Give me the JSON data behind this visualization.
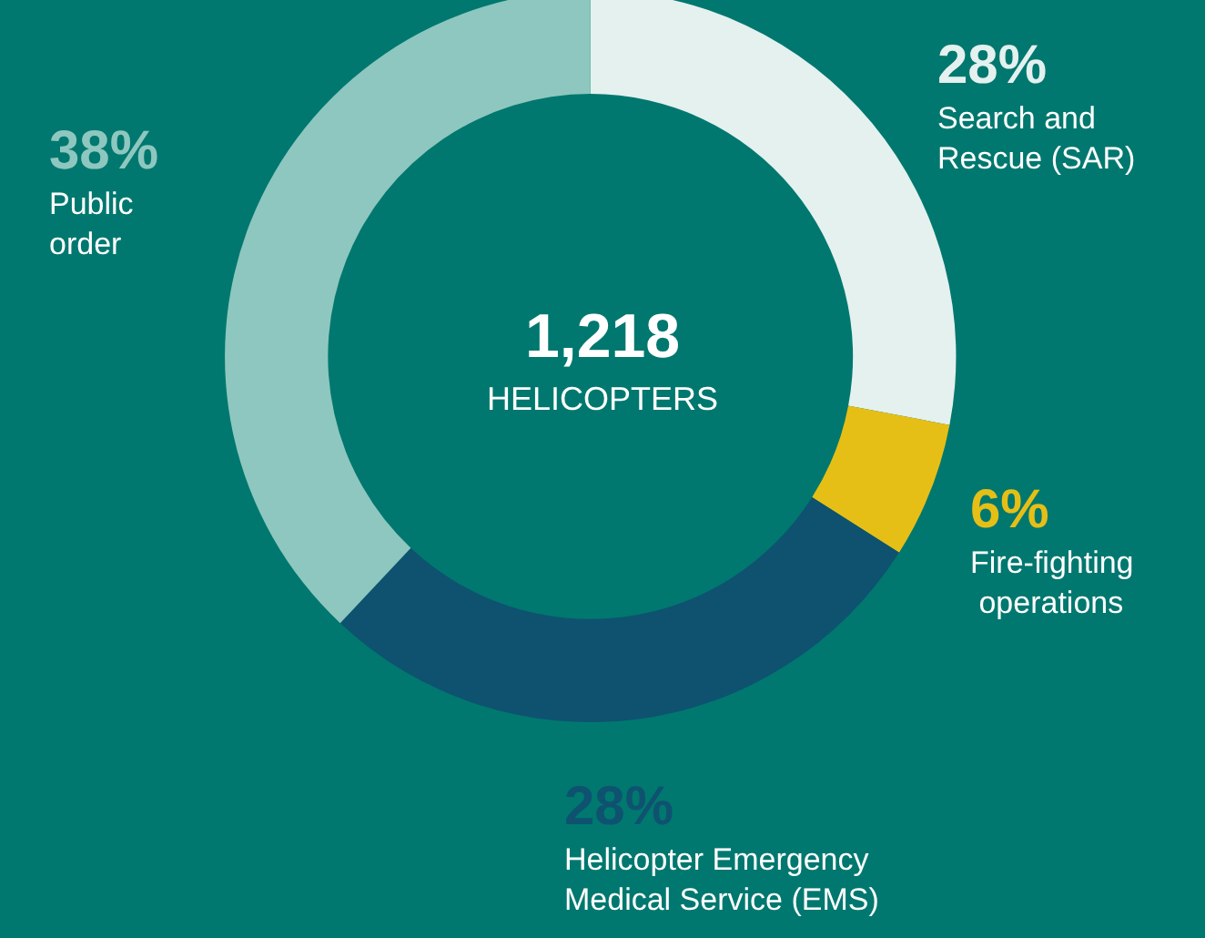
{
  "chart_data": {
    "type": "donut",
    "categories": [
      "Search and Rescue (SAR)",
      "Fire-fighting operations",
      "Helicopter Emergency Medical Service (EMS)",
      "Public order"
    ],
    "values": [
      28,
      6,
      28,
      38
    ],
    "value_labels": [
      "28%",
      "6%",
      "28%",
      "38%"
    ],
    "colors": [
      "#e4f1ef",
      "#e6bf16",
      "#0e5270",
      "#8ec7bf"
    ],
    "annotations": [
      "1,218",
      "HELICOPTERS"
    ],
    "legend": false
  }
}
